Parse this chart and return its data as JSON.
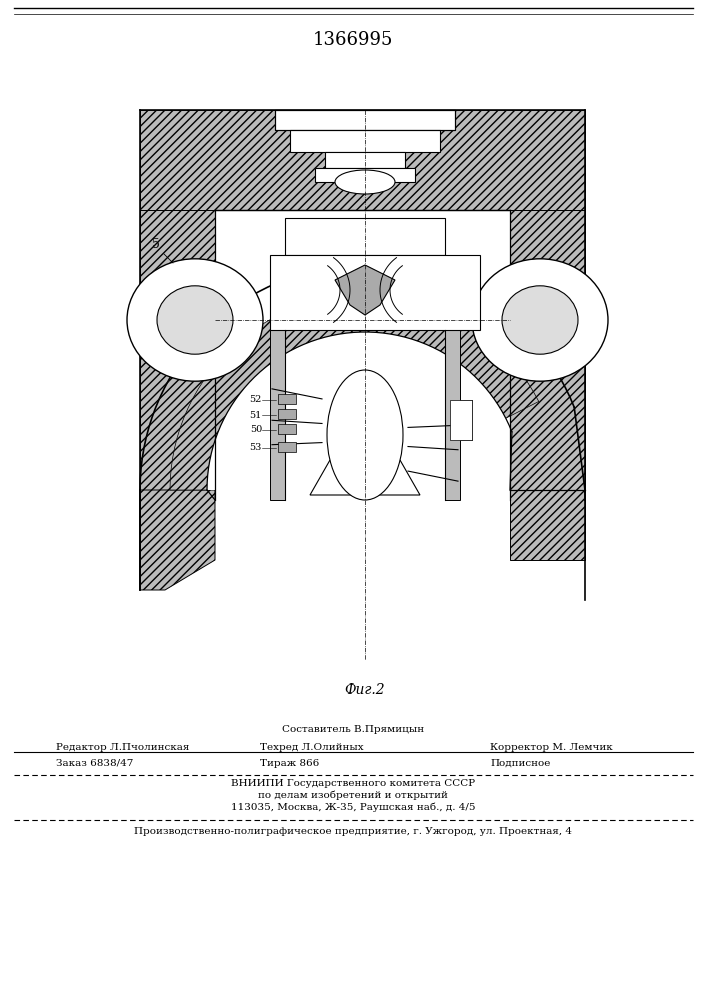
{
  "patent_number": "1366995",
  "fig_label": "Фиг.2",
  "background_color": "#ffffff",
  "footer": {
    "row1_above_text": "Составитель В.Прямицын",
    "row1_col1_text": "Редактор Л.Пчолинская",
    "row1_col2_text": "Техред Л.Олийных",
    "row1_col3_text": "Корректор М. Лемчик",
    "row2_col1_text": "Заказ 6838/47",
    "row2_col2_text": "Тираж 866",
    "row2_col3_text": "Подписное",
    "row3_line1": "ВНИИПИ Государственного комитета СССР",
    "row3_line2": "по делам изобретений и открытий",
    "row3_line3": "113035, Москва, Ж-35, Раушская наб., д. 4/5",
    "row4": "Производственно-полиграфическое предприятие, г. Ужгород, ул. Проектная, 4"
  }
}
